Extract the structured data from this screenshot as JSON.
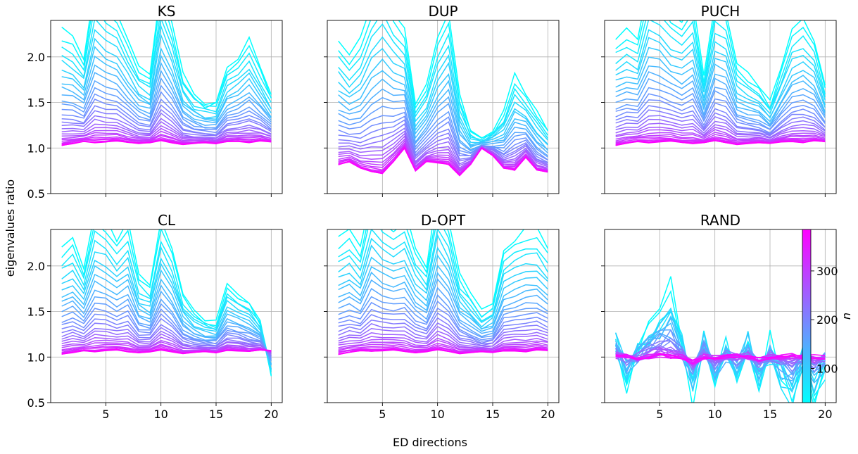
{
  "figure": {
    "xlabel": "ED directions",
    "ylabel": "eigenvalues ratio"
  },
  "colorbar": {
    "label": "n",
    "ticks": [
      100,
      200,
      300
    ],
    "range": [
      30,
      385
    ],
    "color_low": "#00ffff",
    "color_high": "#ff00ff"
  },
  "chart_data": [
    {
      "type": "line",
      "title": "KS",
      "xlim": [
        0,
        21
      ],
      "ylim": [
        0.5,
        2.4
      ],
      "yticks": [
        0.5,
        1.0,
        1.5,
        2.0
      ],
      "xticks": [
        5,
        10,
        15,
        20
      ],
      "grid": true,
      "x": [
        1,
        2,
        3,
        4,
        5,
        6,
        7,
        8,
        9,
        10,
        11,
        12,
        13,
        14,
        15,
        16,
        17,
        18,
        19,
        20
      ],
      "envelope_low_n": [
        2.3,
        2.2,
        2.0,
        2.8,
        2.6,
        2.5,
        2.2,
        1.9,
        1.8,
        2.8,
        2.4,
        1.8,
        1.6,
        1.5,
        1.5,
        1.9,
        2.0,
        2.2,
        1.9,
        1.6
      ],
      "envelope_high_n": [
        1.03,
        1.05,
        1.07,
        1.06,
        1.07,
        1.08,
        1.06,
        1.05,
        1.06,
        1.08,
        1.06,
        1.04,
        1.05,
        1.06,
        1.05,
        1.07,
        1.07,
        1.06,
        1.08,
        1.07
      ]
    },
    {
      "type": "line",
      "title": "DUP",
      "xlim": [
        0,
        21
      ],
      "ylim": [
        0.5,
        2.4
      ],
      "yticks": [
        0.5,
        1.0,
        1.5,
        2.0
      ],
      "xticks": [
        5,
        10,
        15,
        20
      ],
      "grid": true,
      "x": [
        1,
        2,
        3,
        4,
        5,
        6,
        7,
        8,
        9,
        10,
        11,
        12,
        13,
        14,
        15,
        16,
        17,
        18,
        19,
        20
      ],
      "envelope_low_n": [
        2.2,
        2.0,
        2.2,
        2.6,
        2.8,
        2.5,
        2.3,
        1.5,
        1.7,
        2.2,
        2.5,
        1.6,
        1.2,
        1.1,
        1.2,
        1.4,
        1.8,
        1.6,
        1.4,
        1.2
      ],
      "envelope_high_n": [
        0.82,
        0.85,
        0.78,
        0.74,
        0.72,
        0.85,
        1.0,
        0.75,
        0.85,
        0.84,
        0.82,
        0.7,
        0.82,
        1.0,
        0.92,
        0.78,
        0.76,
        0.9,
        0.76,
        0.74
      ]
    },
    {
      "type": "line",
      "title": "PUCH",
      "xlim": [
        0,
        21
      ],
      "ylim": [
        0.5,
        2.4
      ],
      "yticks": [
        0.5,
        1.0,
        1.5,
        2.0
      ],
      "xticks": [
        5,
        10,
        15,
        20
      ],
      "grid": true,
      "x": [
        1,
        2,
        3,
        4,
        5,
        6,
        7,
        8,
        9,
        10,
        11,
        12,
        13,
        14,
        15,
        16,
        17,
        18,
        19,
        20
      ],
      "envelope_low_n": [
        2.2,
        2.3,
        2.2,
        2.8,
        2.7,
        2.5,
        2.4,
        2.6,
        1.8,
        2.6,
        2.5,
        1.9,
        1.8,
        1.7,
        1.5,
        1.9,
        2.3,
        2.4,
        2.2,
        1.7
      ],
      "envelope_high_n": [
        1.03,
        1.05,
        1.07,
        1.06,
        1.07,
        1.08,
        1.06,
        1.05,
        1.06,
        1.08,
        1.06,
        1.04,
        1.05,
        1.06,
        1.05,
        1.07,
        1.07,
        1.06,
        1.08,
        1.07
      ]
    },
    {
      "type": "line",
      "title": "CL",
      "xlim": [
        0,
        21
      ],
      "ylim": [
        0.5,
        2.4
      ],
      "yticks": [
        0.5,
        1.0,
        1.5,
        2.0
      ],
      "xticks": [
        5,
        10,
        15,
        20
      ],
      "grid": true,
      "x": [
        1,
        2,
        3,
        4,
        5,
        6,
        7,
        8,
        9,
        10,
        11,
        12,
        13,
        14,
        15,
        16,
        17,
        18,
        19,
        20
      ],
      "envelope_low_n": [
        2.2,
        2.3,
        2.0,
        2.6,
        2.5,
        2.3,
        2.5,
        1.9,
        1.8,
        2.5,
        2.2,
        1.7,
        1.5,
        1.4,
        1.4,
        1.8,
        1.7,
        1.6,
        1.4,
        0.8
      ],
      "envelope_high_n": [
        1.03,
        1.05,
        1.07,
        1.06,
        1.07,
        1.08,
        1.06,
        1.05,
        1.06,
        1.08,
        1.06,
        1.04,
        1.05,
        1.06,
        1.05,
        1.07,
        1.07,
        1.06,
        1.08,
        1.07
      ]
    },
    {
      "type": "line",
      "title": "D-OPT",
      "xlim": [
        0,
        21
      ],
      "ylim": [
        0.5,
        2.4
      ],
      "yticks": [
        0.5,
        1.0,
        1.5,
        2.0
      ],
      "xticks": [
        5,
        10,
        15,
        20
      ],
      "grid": true,
      "x": [
        1,
        2,
        3,
        4,
        5,
        6,
        7,
        8,
        9,
        10,
        11,
        12,
        13,
        14,
        15,
        16,
        17,
        18,
        19,
        20
      ],
      "envelope_low_n": [
        2.3,
        2.4,
        2.2,
        2.8,
        2.6,
        2.5,
        2.6,
        2.2,
        2.0,
        2.8,
        2.5,
        1.9,
        1.7,
        1.5,
        1.6,
        2.2,
        2.3,
        2.4,
        2.4,
        2.2
      ],
      "envelope_high_n": [
        1.03,
        1.05,
        1.07,
        1.06,
        1.07,
        1.08,
        1.06,
        1.05,
        1.06,
        1.08,
        1.06,
        1.04,
        1.05,
        1.06,
        1.05,
        1.07,
        1.07,
        1.06,
        1.08,
        1.07
      ]
    },
    {
      "type": "line",
      "title": "RAND",
      "xlim": [
        0,
        21
      ],
      "ylim": [
        0.5,
        2.4
      ],
      "yticks": [
        0.5,
        1.0,
        1.5,
        2.0
      ],
      "xticks": [
        5,
        10,
        15,
        20
      ],
      "grid": true,
      "x": [
        1,
        2,
        3,
        4,
        5,
        6,
        7,
        8,
        9,
        10,
        11,
        12,
        13,
        14,
        15,
        16,
        17,
        18,
        19,
        20
      ],
      "envelope_low_n": [
        1.25,
        0.7,
        1.1,
        1.3,
        1.5,
        1.7,
        1.2,
        0.6,
        1.3,
        0.7,
        1.1,
        0.8,
        1.2,
        0.7,
        1.1,
        0.75,
        0.5,
        1.0,
        0.6,
        0.9
      ],
      "envelope_high_n": [
        1.0,
        1.02,
        0.98,
        1.0,
        1.02,
        1.0,
        1.0,
        0.95,
        1.0,
        1.0,
        1.0,
        1.02,
        1.0,
        0.98,
        1.0,
        1.0,
        1.02,
        1.0,
        1.0,
        1.0
      ]
    }
  ]
}
